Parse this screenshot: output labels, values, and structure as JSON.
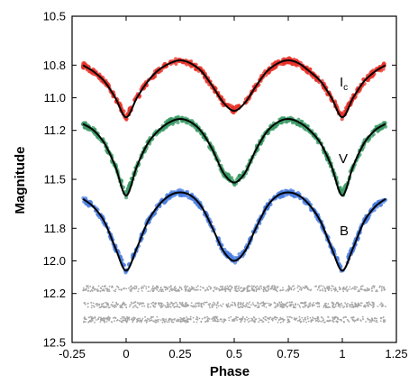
{
  "chart_data": {
    "type": "scatter",
    "title": "",
    "xlabel": "Phase",
    "ylabel": "Magnitude",
    "xlim": [
      -0.25,
      1.25
    ],
    "ylim": [
      12.5,
      10.5
    ],
    "y_inverted": true,
    "grid": false,
    "x_ticks": [
      "-0.25",
      "0",
      "0.25",
      "0.5",
      "0.75",
      "1",
      "1.25"
    ],
    "y_ticks": [
      "10.5",
      "10.8",
      "11.0",
      "11.2",
      "11.5",
      "11.8",
      "12.0",
      "12.2",
      "12.5"
    ],
    "band_labels": [
      {
        "text": "I",
        "subscript": "c"
      },
      {
        "text": "V",
        "subscript": ""
      },
      {
        "text": "B",
        "subscript": ""
      }
    ],
    "series": [
      {
        "kind": "observed points with model fit",
        "color": "#e8332a",
        "phase": [
          -0.2,
          -0.15,
          -0.1,
          -0.05,
          0.0,
          0.05,
          0.1,
          0.15,
          0.2,
          0.25,
          0.3,
          0.35,
          0.4,
          0.45,
          0.5,
          0.55,
          0.6,
          0.65,
          0.7,
          0.75,
          0.8,
          0.85,
          0.9,
          0.95,
          1.0,
          1.05,
          1.1,
          1.15,
          1.2
        ],
        "magnitude": [
          10.8,
          10.84,
          10.9,
          11.0,
          11.12,
          11.0,
          10.9,
          10.83,
          10.79,
          10.77,
          10.79,
          10.84,
          10.93,
          11.03,
          11.08,
          11.03,
          10.93,
          10.84,
          10.79,
          10.77,
          10.79,
          10.84,
          10.9,
          11.0,
          11.12,
          11.0,
          10.9,
          10.84,
          10.8
        ]
      },
      {
        "kind": "observed points with model fit",
        "color": "#3a9a64",
        "phase": [
          -0.2,
          -0.15,
          -0.1,
          -0.05,
          0.0,
          0.05,
          0.1,
          0.15,
          0.2,
          0.25,
          0.3,
          0.35,
          0.4,
          0.45,
          0.5,
          0.55,
          0.6,
          0.65,
          0.7,
          0.75,
          0.8,
          0.85,
          0.9,
          0.95,
          1.0,
          1.05,
          1.1,
          1.15,
          1.2
        ],
        "magnitude": [
          11.16,
          11.2,
          11.28,
          11.42,
          11.6,
          11.42,
          11.28,
          11.2,
          11.15,
          11.13,
          11.15,
          11.21,
          11.32,
          11.46,
          11.52,
          11.46,
          11.32,
          11.21,
          11.15,
          11.13,
          11.15,
          11.2,
          11.28,
          11.42,
          11.6,
          11.42,
          11.28,
          11.2,
          11.16
        ]
      },
      {
        "kind": "observed points with model fit",
        "color": "#4a7de0",
        "phase": [
          -0.2,
          -0.15,
          -0.1,
          -0.05,
          0.0,
          0.05,
          0.1,
          0.15,
          0.2,
          0.25,
          0.3,
          0.35,
          0.4,
          0.45,
          0.5,
          0.55,
          0.6,
          0.65,
          0.7,
          0.75,
          0.8,
          0.85,
          0.9,
          0.95,
          1.0,
          1.05,
          1.1,
          1.15,
          1.2
        ],
        "magnitude": [
          11.62,
          11.67,
          11.76,
          11.92,
          12.06,
          11.92,
          11.76,
          11.66,
          11.6,
          11.58,
          11.6,
          11.67,
          11.8,
          11.94,
          12.0,
          11.94,
          11.8,
          11.67,
          11.6,
          11.58,
          11.6,
          11.66,
          11.76,
          11.92,
          12.06,
          11.92,
          11.76,
          11.67,
          11.62
        ]
      },
      {
        "kind": "residuals",
        "color": "#a6a6a6",
        "phase_range": [
          -0.2,
          1.2
        ],
        "magnitude": 12.17
      },
      {
        "kind": "residuals",
        "color": "#a6a6a6",
        "phase_range": [
          -0.2,
          1.2
        ],
        "magnitude": 12.27
      },
      {
        "kind": "residuals",
        "color": "#a6a6a6",
        "phase_range": [
          -0.2,
          1.2
        ],
        "magnitude": 12.36
      }
    ]
  }
}
